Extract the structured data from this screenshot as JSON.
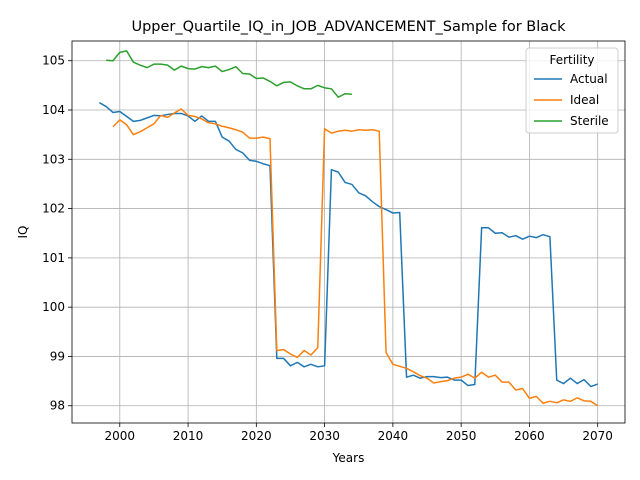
{
  "chart_data": {
    "type": "line",
    "title": "Upper_Quartile_IQ_in_JOB_ADVANCEMENT_Sample for Black",
    "xlabel": "Years",
    "ylabel": "IQ",
    "xlim": [
      1993,
      2074
    ],
    "ylim": [
      97.65,
      105.4
    ],
    "x_ticks": [
      2000,
      2010,
      2020,
      2030,
      2040,
      2050,
      2060,
      2070
    ],
    "y_ticks": [
      98,
      99,
      100,
      101,
      102,
      103,
      104,
      105
    ],
    "grid": true,
    "legend": {
      "title": "Fertility",
      "placement": "top-right"
    },
    "series": [
      {
        "name": "Actual",
        "color": "#1f77b4",
        "x": [
          1997,
          1998,
          1999,
          2000,
          2001,
          2002,
          2003,
          2004,
          2005,
          2006,
          2007,
          2008,
          2009,
          2010,
          2011,
          2012,
          2013,
          2014,
          2015,
          2016,
          2017,
          2018,
          2019,
          2020,
          2021,
          2022,
          2023,
          2024,
          2025,
          2026,
          2027,
          2028,
          2029,
          2030,
          2031,
          2032,
          2033,
          2034,
          2035,
          2036,
          2037,
          2038,
          2039,
          2040,
          2041,
          2042,
          2043,
          2044,
          2045,
          2046,
          2047,
          2048,
          2049,
          2050,
          2051,
          2052,
          2053,
          2054,
          2055,
          2056,
          2057,
          2058,
          2059,
          2060,
          2061,
          2062,
          2063,
          2064,
          2065,
          2066,
          2067,
          2068,
          2069,
          2070
        ],
        "values": [
          104.15,
          104.07,
          103.95,
          103.97,
          103.87,
          103.77,
          103.79,
          103.84,
          103.89,
          103.88,
          103.91,
          103.93,
          103.93,
          103.88,
          103.77,
          103.88,
          103.77,
          103.77,
          103.45,
          103.37,
          103.2,
          103.13,
          102.98,
          102.96,
          102.91,
          102.87,
          98.96,
          98.96,
          98.81,
          98.88,
          98.79,
          98.84,
          98.79,
          98.81,
          102.79,
          102.74,
          102.53,
          102.49,
          102.32,
          102.26,
          102.14,
          102.04,
          101.98,
          101.91,
          101.92,
          98.58,
          98.62,
          98.56,
          98.59,
          98.59,
          98.57,
          98.58,
          98.52,
          98.52,
          98.41,
          98.43,
          101.61,
          101.61,
          101.5,
          101.51,
          101.42,
          101.45,
          101.38,
          101.44,
          101.41,
          101.47,
          101.43,
          98.52,
          98.45,
          98.56,
          98.45,
          98.53,
          98.39,
          98.44
        ]
      },
      {
        "name": "Ideal",
        "color": "#ff7f0e",
        "x": [
          1999,
          2000,
          2001,
          2002,
          2003,
          2004,
          2005,
          2006,
          2007,
          2008,
          2009,
          2010,
          2011,
          2012,
          2013,
          2014,
          2015,
          2016,
          2017,
          2018,
          2019,
          2020,
          2021,
          2022,
          2023,
          2024,
          2025,
          2026,
          2027,
          2028,
          2029,
          2030,
          2031,
          2032,
          2033,
          2034,
          2035,
          2036,
          2037,
          2038,
          2039,
          2040,
          2041,
          2042,
          2043,
          2044,
          2045,
          2046,
          2047,
          2048,
          2049,
          2050,
          2051,
          2052,
          2053,
          2054,
          2055,
          2056,
          2057,
          2058,
          2059,
          2060,
          2061,
          2062,
          2063,
          2064,
          2065,
          2066,
          2067,
          2068,
          2069,
          2070
        ],
        "values": [
          103.66,
          103.8,
          103.7,
          103.5,
          103.56,
          103.64,
          103.72,
          103.89,
          103.85,
          103.94,
          104.02,
          103.89,
          103.87,
          103.82,
          103.74,
          103.72,
          103.67,
          103.64,
          103.6,
          103.55,
          103.43,
          103.43,
          103.45,
          103.42,
          99.12,
          99.14,
          99.05,
          98.98,
          99.12,
          99.03,
          99.18,
          103.62,
          103.53,
          103.57,
          103.59,
          103.57,
          103.6,
          103.59,
          103.6,
          103.57,
          99.08,
          98.84,
          98.8,
          98.76,
          98.69,
          98.61,
          98.56,
          98.46,
          98.49,
          98.51,
          98.56,
          98.58,
          98.64,
          98.56,
          98.68,
          98.58,
          98.62,
          98.48,
          98.48,
          98.32,
          98.35,
          98.15,
          98.19,
          98.05,
          98.09,
          98.06,
          98.12,
          98.09,
          98.16,
          98.1,
          98.09,
          98.0
        ]
      },
      {
        "name": "Sterile",
        "color": "#2ca02c",
        "x": [
          1998,
          1999,
          2000,
          2001,
          2002,
          2003,
          2004,
          2005,
          2006,
          2007,
          2008,
          2009,
          2010,
          2011,
          2012,
          2013,
          2014,
          2015,
          2016,
          2017,
          2018,
          2019,
          2020,
          2021,
          2022,
          2023,
          2024,
          2025,
          2026,
          2027,
          2028,
          2029,
          2030,
          2031,
          2032,
          2033,
          2034
        ],
        "values": [
          105.01,
          105.0,
          105.17,
          105.2,
          104.97,
          104.91,
          104.86,
          104.93,
          104.93,
          104.91,
          104.81,
          104.89,
          104.84,
          104.83,
          104.88,
          104.86,
          104.89,
          104.78,
          104.82,
          104.88,
          104.74,
          104.73,
          104.64,
          104.65,
          104.58,
          104.49,
          104.56,
          104.57,
          104.49,
          104.43,
          104.43,
          104.5,
          104.45,
          104.43,
          104.26,
          104.33,
          104.32
        ]
      }
    ]
  }
}
